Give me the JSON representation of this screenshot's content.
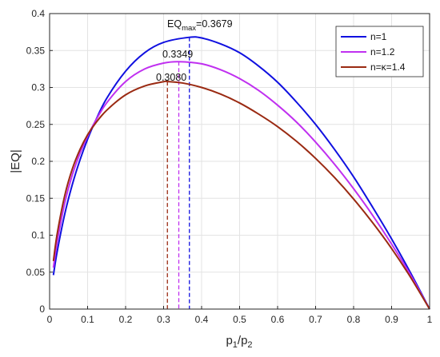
{
  "chart_data": {
    "type": "line",
    "xlabel_main": "p",
    "xlabel_sub1": "1",
    "xlabel_mid": "/p",
    "xlabel_sub2": "2",
    "ylabel": "|EQ|",
    "xlim": [
      0,
      1
    ],
    "ylim": [
      0,
      0.4
    ],
    "xticks": [
      0,
      0.1,
      0.2,
      0.3,
      0.4,
      0.5,
      0.6,
      0.7,
      0.8,
      0.9,
      1
    ],
    "xtick_labels": [
      "0",
      "0.1",
      "0.2",
      "0.3",
      "0.4",
      "0.5",
      "0.6",
      "0.7",
      "0.8",
      "0.9",
      "1"
    ],
    "yticks": [
      0,
      0.05,
      0.1,
      0.15,
      0.2,
      0.25,
      0.3,
      0.35,
      0.4
    ],
    "ytick_labels": [
      "0",
      "0.05",
      "0.1",
      "0.15",
      "0.2",
      "0.25",
      "0.3",
      "0.35",
      "0.4"
    ],
    "grid": true,
    "legend_position": "top-right",
    "series": [
      {
        "name": "n=1",
        "color": "#1010e0",
        "x": [
          0.01,
          0.02,
          0.04,
          0.06,
          0.08,
          0.1,
          0.12,
          0.15,
          0.2,
          0.25,
          0.3,
          0.3679,
          0.4,
          0.45,
          0.5,
          0.55,
          0.6,
          0.65,
          0.7,
          0.75,
          0.8,
          0.85,
          0.9,
          0.95,
          1.0
        ],
        "y": [
          0.046,
          0.078,
          0.129,
          0.169,
          0.202,
          0.23,
          0.254,
          0.285,
          0.322,
          0.347,
          0.361,
          0.3679,
          0.367,
          0.359,
          0.347,
          0.329,
          0.307,
          0.28,
          0.25,
          0.216,
          0.179,
          0.138,
          0.095,
          0.049,
          0.0
        ]
      },
      {
        "name": "n=1.2",
        "color": "#c030f0",
        "x": [
          0.01,
          0.02,
          0.04,
          0.06,
          0.08,
          0.1,
          0.12,
          0.15,
          0.2,
          0.25,
          0.3,
          0.34,
          0.4,
          0.45,
          0.5,
          0.55,
          0.6,
          0.65,
          0.7,
          0.75,
          0.8,
          0.85,
          0.9,
          0.95,
          1.0
        ],
        "y": [
          0.056,
          0.091,
          0.144,
          0.182,
          0.211,
          0.234,
          0.254,
          0.279,
          0.308,
          0.325,
          0.333,
          0.3349,
          0.332,
          0.324,
          0.312,
          0.296,
          0.276,
          0.253,
          0.226,
          0.196,
          0.163,
          0.127,
          0.088,
          0.046,
          0.0
        ]
      },
      {
        "name": "n=κ=1.4",
        "color": "#9a2a12",
        "x": [
          0.01,
          0.02,
          0.04,
          0.06,
          0.08,
          0.1,
          0.12,
          0.15,
          0.2,
          0.25,
          0.3,
          0.31,
          0.35,
          0.4,
          0.45,
          0.5,
          0.55,
          0.6,
          0.65,
          0.7,
          0.75,
          0.8,
          0.85,
          0.9,
          0.95,
          1.0
        ],
        "y": [
          0.065,
          0.102,
          0.154,
          0.19,
          0.216,
          0.236,
          0.251,
          0.269,
          0.29,
          0.302,
          0.3078,
          0.308,
          0.306,
          0.3,
          0.291,
          0.279,
          0.264,
          0.247,
          0.227,
          0.204,
          0.178,
          0.149,
          0.117,
          0.082,
          0.043,
          0.0
        ]
      }
    ],
    "markers": [
      {
        "x": 0.3679,
        "y": 0.3679,
        "color": "#1010e0",
        "label_prefix": "EQ",
        "label_sub": "max",
        "label_value": "=0.3679"
      },
      {
        "x": 0.34,
        "y": 0.3349,
        "color": "#c030f0",
        "label_value": "0.3349"
      },
      {
        "x": 0.31,
        "y": 0.308,
        "color": "#9a2a12",
        "label_value": "0.3080"
      }
    ]
  }
}
